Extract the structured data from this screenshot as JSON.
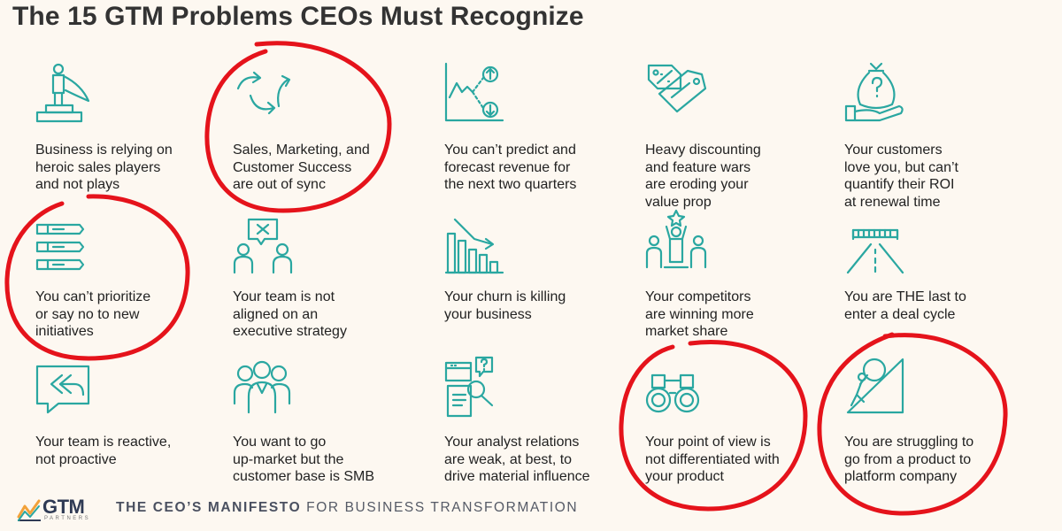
{
  "title": "The 15 GTM Problems CEOs Must Recognize",
  "items": [
    {
      "icon": "hero-podium-icon",
      "lines": [
        "Business is relying on",
        "heroic sales players",
        "and not plays"
      ],
      "circled": false
    },
    {
      "icon": "sync-arrows-icon",
      "lines": [
        "Sales, Marketing, and",
        "Customer Success",
        "are out of sync"
      ],
      "circled": true
    },
    {
      "icon": "forecast-chart-icon",
      "lines": [
        "You can’t predict and",
        "forecast revenue for",
        "the next two quarters"
      ],
      "circled": false
    },
    {
      "icon": "sale-tag-icon",
      "lines": [
        "Heavy discounting",
        "and feature wars",
        "are eroding your",
        "value prop"
      ],
      "circled": false
    },
    {
      "icon": "money-bag-hand-icon",
      "lines": [
        "Your customers",
        "love you, but can’t",
        "quantify their ROI",
        "at renewal time"
      ],
      "circled": false
    },
    {
      "icon": "priority-list-icon",
      "lines": [
        "You can’t prioritize",
        "or say no to new",
        "initiatives"
      ],
      "circled": true
    },
    {
      "icon": "misaligned-team-icon",
      "lines": [
        "Your team is not",
        "aligned on an",
        "executive strategy"
      ],
      "circled": false
    },
    {
      "icon": "declining-bars-icon",
      "lines": [
        "Your churn is killing",
        "your business"
      ],
      "circled": false
    },
    {
      "icon": "winning-competitor-icon",
      "lines": [
        "Your competitors",
        "are winning more",
        "market share"
      ],
      "circled": false
    },
    {
      "icon": "race-finish-icon",
      "lines": [
        "You are THE last to",
        "enter a deal cycle"
      ],
      "circled": false
    },
    {
      "icon": "reply-bubble-icon",
      "lines": [
        "Your team is reactive,",
        "not proactive"
      ],
      "circled": false
    },
    {
      "icon": "customer-group-icon",
      "lines": [
        "You want to go",
        "up-market but the",
        "customer base is SMB"
      ],
      "circled": false
    },
    {
      "icon": "analyst-research-icon",
      "lines": [
        "Your analyst relations",
        "are weak, at best, to",
        "drive material influence"
      ],
      "circled": false
    },
    {
      "icon": "binoculars-icon",
      "lines": [
        "Your point of view is",
        "not differentiated with",
        "your product"
      ],
      "circled": true
    },
    {
      "icon": "boulder-push-icon",
      "lines": [
        "You are struggling to",
        "go from a product to",
        "platform company"
      ],
      "circled": true
    }
  ],
  "footer": {
    "logo_text": "GTM",
    "logo_sub": "PARTNERS",
    "tagline_bold": "THE CEO’S MANIFESTO",
    "tagline_rest": "FOR BUSINESS TRANSFORMATION"
  },
  "colors": {
    "accent": "#2aa7a1",
    "circle": "#e5131b",
    "text": "#222222",
    "background": "#fdf8f1"
  }
}
